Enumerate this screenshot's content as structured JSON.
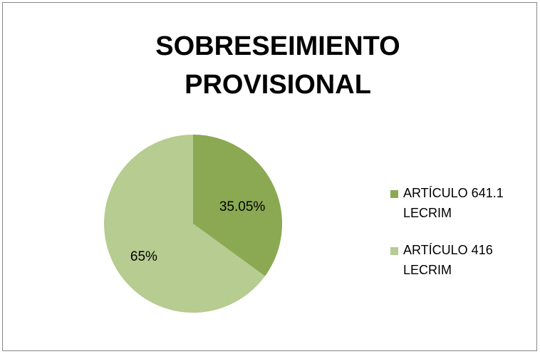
{
  "chart_data": {
    "type": "pie",
    "title": "SOBRESEIMIENTO PROVISIONAL",
    "categories": [
      "ARTÍCULO 641.1 LECRIM",
      "ARTÍCULO 416 LECRIM"
    ],
    "values": [
      35.05,
      65
    ],
    "value_labels": [
      "35.05%",
      "65%"
    ],
    "colors": [
      "#8aa952",
      "#b6cc90"
    ],
    "legend": "right"
  }
}
